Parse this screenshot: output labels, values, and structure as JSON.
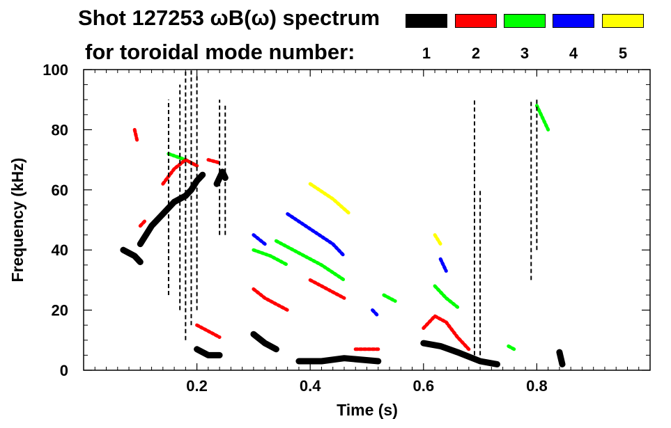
{
  "title": {
    "line1": "Shot 127253 ωB(ω) spectrum",
    "line2": "for toroidal mode number:"
  },
  "legend": [
    {
      "label": "1",
      "color": "#000000"
    },
    {
      "label": "2",
      "color": "#ff0000"
    },
    {
      "label": "3",
      "color": "#00ff00"
    },
    {
      "label": "4",
      "color": "#0000ff"
    },
    {
      "label": "5",
      "color": "#ffff00"
    }
  ],
  "chart_data": {
    "type": "scatter",
    "title": "Shot 127253 ωB(ω) spectrum",
    "xlabel": "Time (s)",
    "ylabel": "Frequency (kHz)",
    "xlim": [
      0.0,
      1.0
    ],
    "ylim": [
      0,
      100
    ],
    "xticks": [
      0.2,
      0.4,
      0.6,
      0.8
    ],
    "xtick_labels": [
      "0.2",
      "0.4",
      "0.6",
      "0.8"
    ],
    "yticks": [
      0,
      20,
      40,
      60,
      80,
      100
    ],
    "ytick_labels": [
      "0",
      "20",
      "40",
      "60",
      "80",
      "100"
    ],
    "grid": false,
    "series": [
      {
        "name": "1",
        "color": "#000000",
        "segments": [
          {
            "x": [
              0.07,
              0.08,
              0.09,
              0.1
            ],
            "y": [
              40,
              39,
              38,
              36
            ]
          },
          {
            "x": [
              0.1,
              0.12,
              0.14,
              0.16,
              0.18
            ],
            "y": [
              42,
              48,
              52,
              56,
              58
            ]
          },
          {
            "x": [
              0.18,
              0.19,
              0.2,
              0.21
            ],
            "y": [
              58,
              60,
              63,
              65
            ]
          },
          {
            "x": [
              0.2,
              0.22,
              0.24
            ],
            "y": [
              7,
              5,
              5
            ]
          },
          {
            "x": [
              0.235,
              0.245,
              0.25
            ],
            "y": [
              62,
              66,
              64
            ]
          },
          {
            "x": [
              0.3,
              0.32,
              0.34
            ],
            "y": [
              12,
              9,
              7
            ]
          },
          {
            "x": [
              0.38,
              0.42,
              0.46,
              0.52
            ],
            "y": [
              3,
              3,
              4,
              3
            ]
          },
          {
            "x": [
              0.6,
              0.63,
              0.66,
              0.7,
              0.73
            ],
            "y": [
              9,
              8,
              6,
              3,
              2
            ]
          },
          {
            "x": [
              0.84,
              0.845
            ],
            "y": [
              6,
              2
            ]
          }
        ],
        "vertical_streaks": [
          {
            "x": 0.15,
            "ymin": 25,
            "ymax": 90
          },
          {
            "x": 0.17,
            "ymin": 20,
            "ymax": 95
          },
          {
            "x": 0.18,
            "ymin": 10,
            "ymax": 100
          },
          {
            "x": 0.19,
            "ymin": 15,
            "ymax": 100
          },
          {
            "x": 0.2,
            "ymin": 20,
            "ymax": 98
          },
          {
            "x": 0.24,
            "ymin": 45,
            "ymax": 90
          },
          {
            "x": 0.25,
            "ymin": 45,
            "ymax": 88
          },
          {
            "x": 0.69,
            "ymin": 5,
            "ymax": 90
          },
          {
            "x": 0.7,
            "ymin": 5,
            "ymax": 60
          },
          {
            "x": 0.79,
            "ymin": 30,
            "ymax": 90
          },
          {
            "x": 0.8,
            "ymin": 40,
            "ymax": 90
          }
        ]
      },
      {
        "name": "2",
        "color": "#ff0000",
        "segments": [
          {
            "x": [
              0.09,
              0.095
            ],
            "y": [
              80,
              76
            ]
          },
          {
            "x": [
              0.1,
              0.11
            ],
            "y": [
              48,
              50
            ]
          },
          {
            "x": [
              0.14,
              0.16,
              0.18,
              0.2
            ],
            "y": [
              62,
              67,
              70,
              68
            ]
          },
          {
            "x": [
              0.22,
              0.24
            ],
            "y": [
              70,
              69
            ]
          },
          {
            "x": [
              0.2,
              0.22,
              0.24
            ],
            "y": [
              15,
              13,
              11
            ]
          },
          {
            "x": [
              0.3,
              0.32,
              0.34,
              0.36
            ],
            "y": [
              27,
              24,
              22,
              20
            ]
          },
          {
            "x": [
              0.4,
              0.42,
              0.44,
              0.46
            ],
            "y": [
              30,
              28,
              26,
              24
            ]
          },
          {
            "x": [
              0.48,
              0.5,
              0.52
            ],
            "y": [
              7,
              7,
              7
            ]
          },
          {
            "x": [
              0.6,
              0.62,
              0.64,
              0.66,
              0.68
            ],
            "y": [
              14,
              18,
              16,
              11,
              7
            ]
          }
        ]
      },
      {
        "name": "3",
        "color": "#00ff00",
        "segments": [
          {
            "x": [
              0.15,
              0.18,
              0.2
            ],
            "y": [
              72,
              70,
              68
            ]
          },
          {
            "x": [
              0.3,
              0.33,
              0.36
            ],
            "y": [
              40,
              38,
              35
            ]
          },
          {
            "x": [
              0.34,
              0.38,
              0.42,
              0.46
            ],
            "y": [
              43,
              39,
              35,
              30
            ]
          },
          {
            "x": [
              0.53,
              0.55
            ],
            "y": [
              25,
              23
            ]
          },
          {
            "x": [
              0.62,
              0.64,
              0.66
            ],
            "y": [
              28,
              24,
              21
            ]
          },
          {
            "x": [
              0.75,
              0.76
            ],
            "y": [
              8,
              7
            ]
          },
          {
            "x": [
              0.8,
              0.82
            ],
            "y": [
              88,
              80
            ]
          }
        ]
      },
      {
        "name": "4",
        "color": "#0000ff",
        "segments": [
          {
            "x": [
              0.3,
              0.32
            ],
            "y": [
              45,
              42
            ]
          },
          {
            "x": [
              0.36,
              0.4,
              0.44,
              0.46
            ],
            "y": [
              52,
              47,
              42,
              38
            ]
          },
          {
            "x": [
              0.51,
              0.52
            ],
            "y": [
              20,
              18
            ]
          },
          {
            "x": [
              0.63,
              0.64
            ],
            "y": [
              37,
              33
            ]
          }
        ]
      },
      {
        "name": "5",
        "color": "#ffff00",
        "segments": [
          {
            "x": [
              0.4,
              0.44,
              0.47
            ],
            "y": [
              62,
              57,
              52
            ]
          },
          {
            "x": [
              0.62,
              0.63
            ],
            "y": [
              45,
              42
            ]
          }
        ]
      }
    ]
  }
}
